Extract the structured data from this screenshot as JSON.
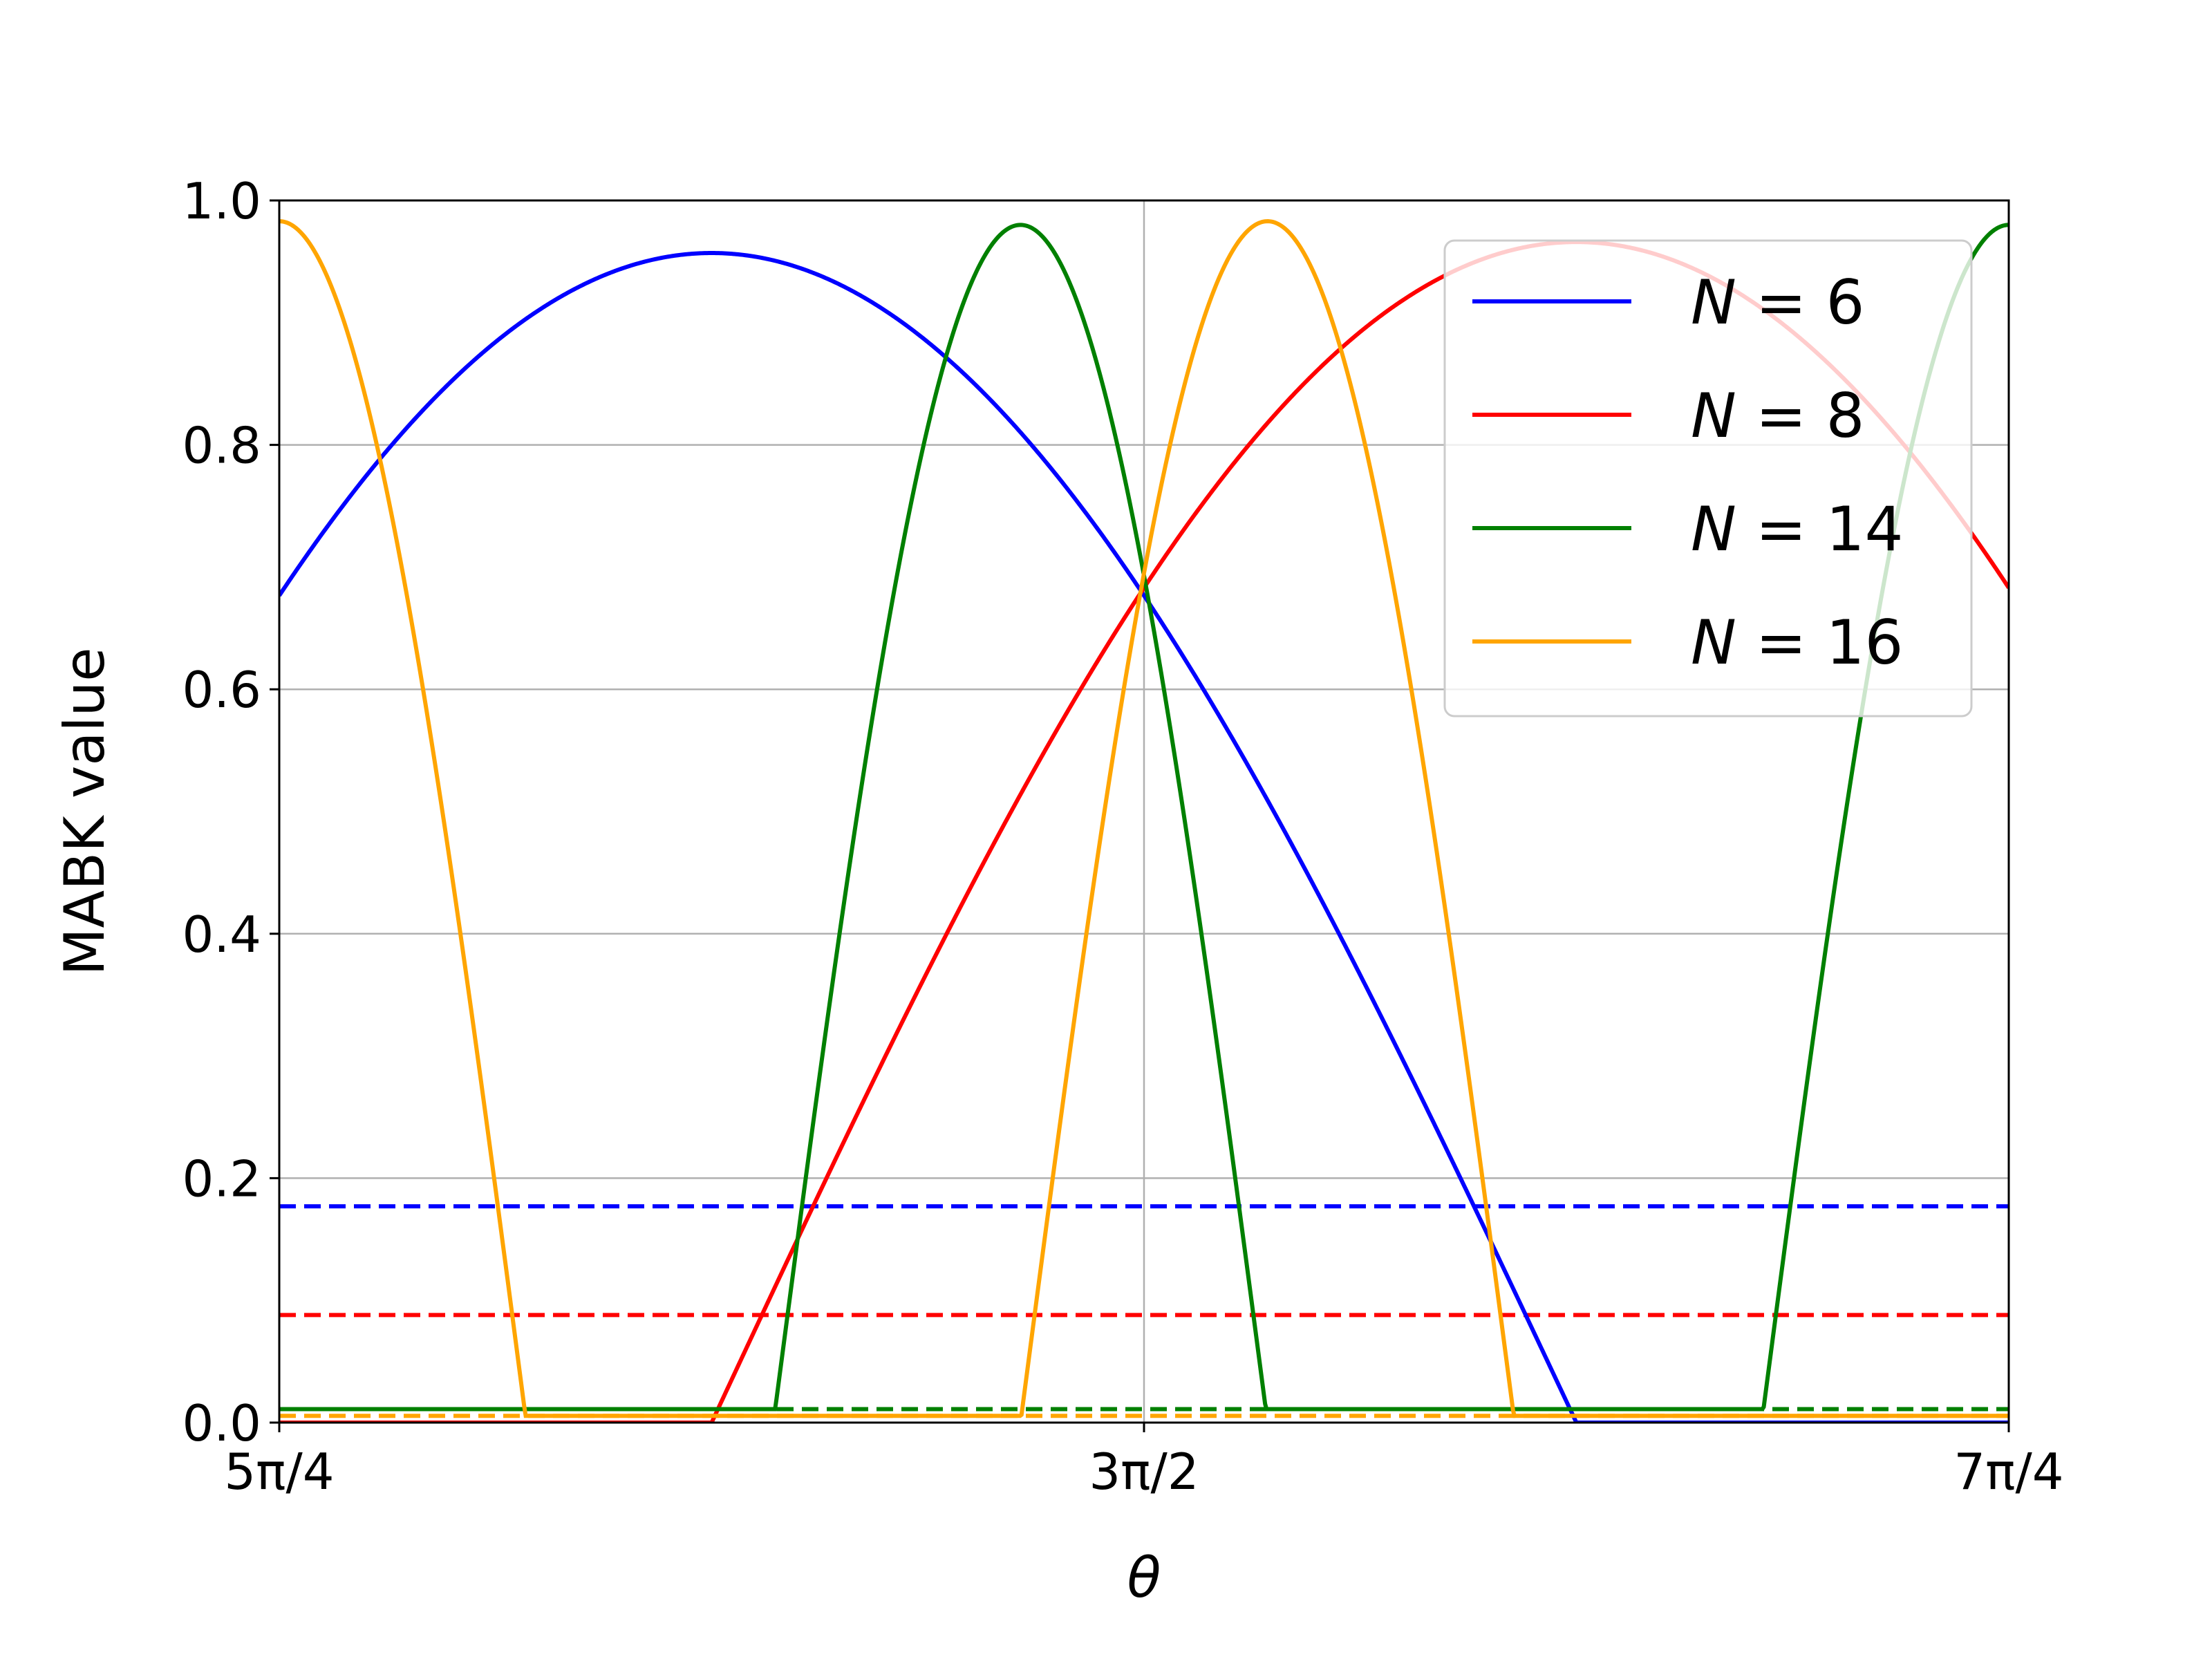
{
  "chart_data": {
    "type": "line",
    "xlabel": "θ",
    "ylabel": "MABK value",
    "xlim": [
      3.9269908,
      5.4977871
    ],
    "ylim": [
      0.0,
      1.0
    ],
    "x_ticks": [
      {
        "value": 3.9269908,
        "label": "5π/4"
      },
      {
        "value": 4.712389,
        "label": "3π/2"
      },
      {
        "value": 5.4977871,
        "label": "7π/4"
      }
    ],
    "y_ticks": [
      {
        "value": 0.0,
        "label": "0.0"
      },
      {
        "value": 0.2,
        "label": "0.2"
      },
      {
        "value": 0.4,
        "label": "0.4"
      },
      {
        "value": 0.6,
        "label": "0.6"
      },
      {
        "value": 0.8,
        "label": "0.8"
      },
      {
        "value": 1.0,
        "label": "1.0"
      }
    ],
    "grid": true,
    "legend_position": "top-right",
    "series": [
      {
        "name": "N = 6",
        "label_var": "N",
        "label_eq": " = ",
        "label_num": "6",
        "color": "#0000ff",
        "threshold": 0.177,
        "amplitude": 0.957,
        "frequency": 2,
        "phase": 0.7071068
      },
      {
        "name": "N = 8",
        "label_var": "N",
        "label_eq": " = ",
        "label_num": "8",
        "color": "#ff0000",
        "threshold": 0.088,
        "amplitude": 0.966,
        "frequency": 2,
        "phase": -0.7071068
      },
      {
        "name": "N = 14",
        "label_var": "N",
        "label_eq": " = ",
        "label_num": "14",
        "color": "#008000",
        "threshold": 0.011,
        "amplitude": 0.98,
        "frequency": 7,
        "phase": 0.7071068
      },
      {
        "name": "N = 16",
        "label_var": "N",
        "label_eq": " = ",
        "label_num": "16",
        "color": "#ffa500",
        "threshold": 0.0055,
        "amplitude": 0.983,
        "frequency": 7,
        "phase": -0.7071068
      }
    ]
  }
}
